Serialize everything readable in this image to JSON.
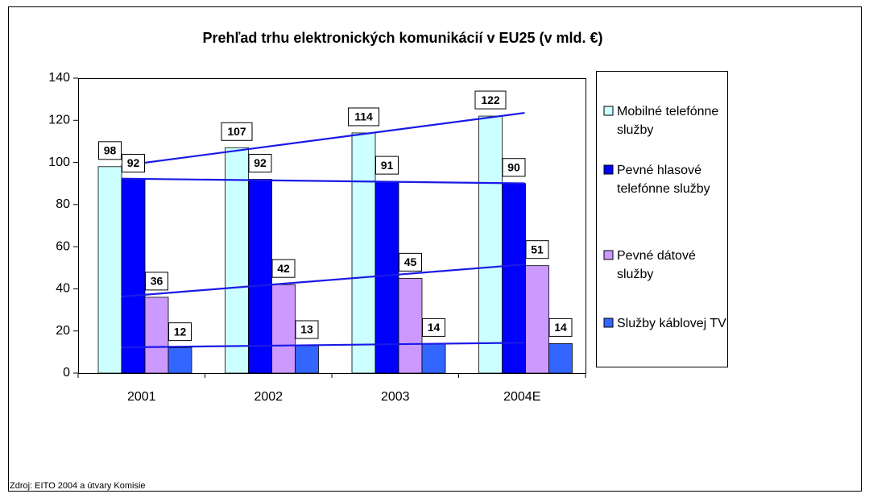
{
  "chart_data": {
    "type": "bar",
    "title": "Prehľad trhu elektronických komunikácií v EU25 (v mld. €)",
    "categories": [
      "2001",
      "2002",
      "2003",
      "2004E"
    ],
    "series": [
      {
        "name": "Mobilné telefónne služby",
        "color": "#ccffff",
        "values": [
          98,
          107,
          114,
          122
        ]
      },
      {
        "name": "Pevné hlasové telefónne služby",
        "color": "#0000ff",
        "values": [
          92,
          92,
          91,
          90
        ]
      },
      {
        "name": "Pevné dátové služby",
        "color": "#cc99ff",
        "values": [
          36,
          42,
          45,
          51
        ]
      },
      {
        "name": "Služby káblovej TV",
        "color": "#3366ff",
        "values": [
          12,
          13,
          14,
          14
        ]
      }
    ],
    "ylim": [
      0,
      140
    ],
    "yticks": [
      0,
      20,
      40,
      60,
      80,
      100,
      120,
      140
    ],
    "trendlines": true,
    "trendline_color": "#1a1ae6",
    "legend": "right",
    "source": "Zdroj: EITO 2004 a útvary Komisie"
  }
}
